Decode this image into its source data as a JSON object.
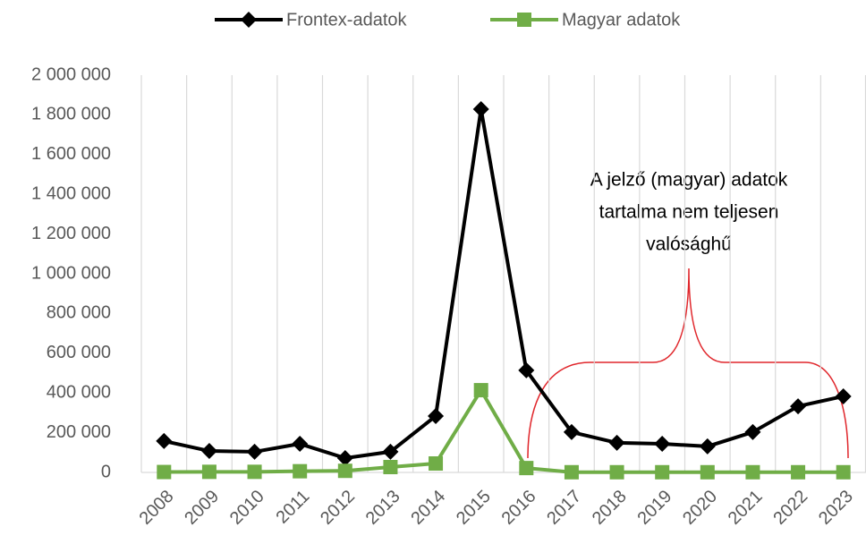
{
  "chart_data": {
    "type": "line",
    "categories": [
      "2008",
      "2009",
      "2010",
      "2011",
      "2012",
      "2013",
      "2014",
      "2015",
      "2016",
      "2017",
      "2018",
      "2019",
      "2020",
      "2021",
      "2022",
      "2023"
    ],
    "series": [
      {
        "name": "Frontex-adatok",
        "color": "#000000",
        "marker": "diamond",
        "values": [
          158000,
          108000,
          104000,
          144000,
          72000,
          104000,
          284000,
          1829000,
          514000,
          203000,
          149000,
          144000,
          131000,
          203000,
          333000,
          383000
        ]
      },
      {
        "name": "Magyar adatok",
        "color": "#70ad47",
        "marker": "square",
        "values": [
          2000,
          3000,
          3000,
          6000,
          8000,
          27000,
          45000,
          414000,
          22000,
          1000,
          1000,
          1000,
          1000,
          1000,
          1000,
          1000
        ]
      }
    ],
    "ylim": [
      0,
      2000000
    ],
    "yticks": [
      0,
      {
        "value": 200000,
        "label": "200 000"
      },
      {
        "value": 400000,
        "label": "400 000"
      },
      {
        "value": 600000,
        "label": "600 000"
      },
      {
        "value": 800000,
        "label": "800 000"
      },
      {
        "value": 1000000,
        "label": "1 000 000"
      },
      {
        "value": 1200000,
        "label": "1 200 000"
      },
      {
        "value": 1400000,
        "label": "1 400 000"
      },
      {
        "value": 1600000,
        "label": "1 600 000"
      },
      {
        "value": 1800000,
        "label": "1 800 000"
      },
      {
        "value": 2000000,
        "label": "2 000 000"
      }
    ],
    "grid": "x",
    "legend": "top",
    "annotation": [
      "A jelző (magyar) adatok",
      "tartalma nem teljesen",
      "valósághű"
    ]
  }
}
